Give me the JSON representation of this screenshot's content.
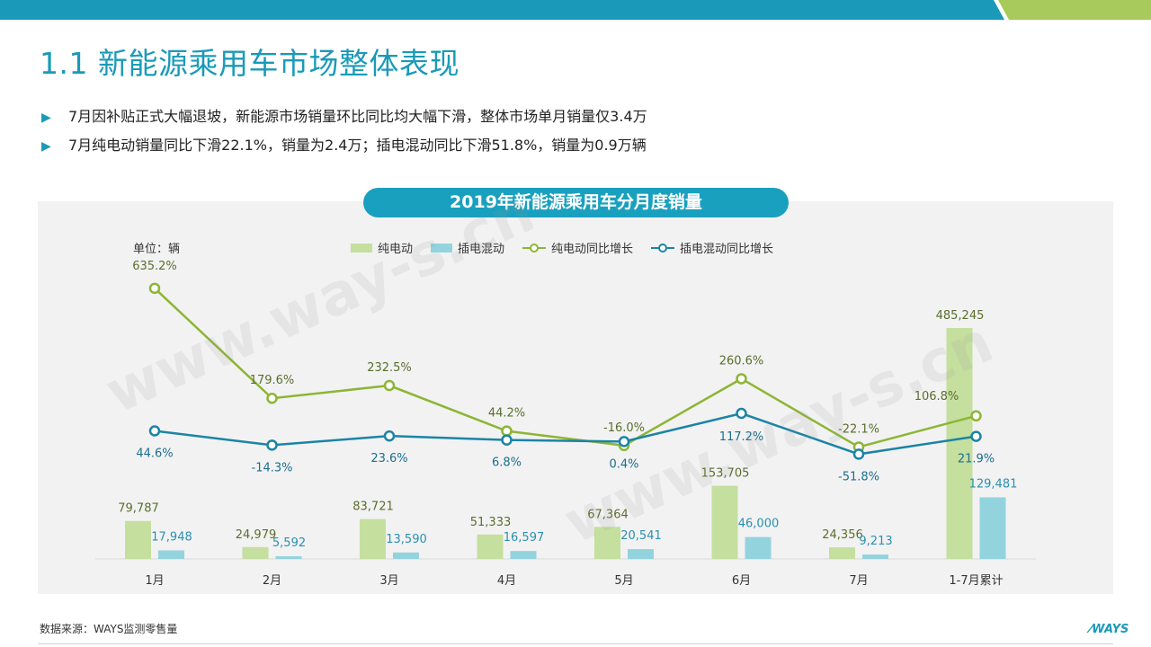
{
  "slide": {
    "title": "1.1 新能源乘用车市场整体表现",
    "bullets": [
      "7月因补贴正式大幅退坡，新能源市场销量环比同比均大幅下滑，整体市场单月销量仅3.4万",
      "7月纯电动销量同比下滑22.1%，销量为2.4万；插电混动同比下滑51.8%，销量为0.9万辆"
    ],
    "bullet_icon": "triangle-right-icon",
    "source": "数据来源：WAYS监测零售量",
    "logo_text": "WAYS",
    "watermark": "www.way-s.cn"
  },
  "colors": {
    "accent": "#1a9ab8",
    "header_green": "#a8c95c",
    "bev_bar": "#c5df9f",
    "phev_bar": "#93d3de",
    "bev_line": "#8db534",
    "phev_line": "#1b84a6",
    "panel_bg": "#f2f2f2"
  },
  "chart_data": {
    "type": "bar",
    "title": "2019年新能源乘用车分月度销量",
    "unit_label": "单位：辆",
    "categories": [
      "1月",
      "2月",
      "3月",
      "4月",
      "5月",
      "6月",
      "7月",
      "1-7月累计"
    ],
    "series": [
      {
        "name": "纯电动",
        "type": "bar",
        "values": [
          79787,
          24979,
          83721,
          51333,
          67364,
          153705,
          24356,
          485245
        ],
        "labels": [
          "79,787",
          "24,979",
          "83,721",
          "51,333",
          "67,364",
          "153,705",
          "24,356",
          "485,245"
        ]
      },
      {
        "name": "插电混动",
        "type": "bar",
        "values": [
          17948,
          5592,
          13590,
          16597,
          20541,
          46000,
          9213,
          129481
        ],
        "labels": [
          "17,948",
          "5,592",
          "13,590",
          "16,597",
          "20,541",
          "46,000",
          "9,213",
          "129,481"
        ]
      },
      {
        "name": "纯电动同比增长",
        "type": "line",
        "values": [
          635.2,
          179.6,
          232.5,
          44.2,
          -16.0,
          260.6,
          -22.1,
          106.8
        ],
        "labels": [
          "635.2%",
          "179.6%",
          "232.5%",
          "44.2%",
          "-16.0%",
          "260.6%",
          "-22.1%",
          "106.8%"
        ]
      },
      {
        "name": "插电混动同比增长",
        "type": "line",
        "values": [
          44.6,
          -14.3,
          23.6,
          6.8,
          0.4,
          117.2,
          -51.8,
          21.9
        ],
        "labels": [
          "44.6%",
          "-14.3%",
          "23.6%",
          "6.8%",
          "0.4%",
          "117.2%",
          "-51.8%",
          "21.9%"
        ]
      }
    ],
    "bar_ylim": [
      0,
      550000
    ],
    "line_ylim": [
      -70,
      700
    ],
    "legend_position": "top",
    "grid": false
  }
}
